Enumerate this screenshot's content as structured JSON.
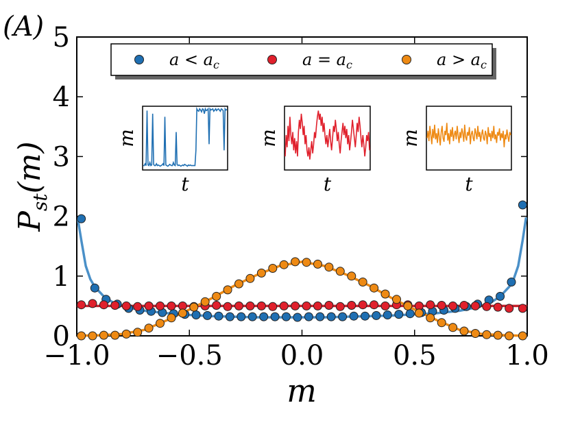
{
  "chart_data": {
    "type": "scatter",
    "panel_label": "(A)",
    "xlabel": "m",
    "ylabel": "P_st(m)",
    "xlim": [
      -1.0,
      1.0
    ],
    "ylim": [
      0,
      5
    ],
    "x_ticks": [
      -1.0,
      -0.5,
      0.0,
      0.5,
      1.0
    ],
    "x_tick_labels": [
      "−1.0",
      "−0.5",
      "0.0",
      "0.5",
      "1.0"
    ],
    "y_ticks": [
      0,
      1,
      2,
      3,
      4,
      5
    ],
    "y_tick_labels": [
      "0",
      "1",
      "2",
      "3",
      "4",
      "5"
    ],
    "legend": {
      "placement": "top-center",
      "entries": [
        {
          "label": "a < a_c",
          "color": "#1f6fb2"
        },
        {
          "label": "a = a_c",
          "color": "#e0202c"
        },
        {
          "label": "a > a_c",
          "color": "#ee8a14"
        }
      ]
    },
    "series": [
      {
        "name": "a < a_c",
        "color": "#1f6fb2",
        "fit_color": "#4a90c8",
        "points": [
          [
            -0.98,
            1.96
          ],
          [
            -0.92,
            0.8
          ],
          [
            -0.87,
            0.61
          ],
          [
            -0.82,
            0.53
          ],
          [
            -0.77,
            0.46
          ],
          [
            -0.72,
            0.43
          ],
          [
            -0.67,
            0.41
          ],
          [
            -0.62,
            0.39
          ],
          [
            -0.57,
            0.37
          ],
          [
            -0.52,
            0.36
          ],
          [
            -0.47,
            0.35
          ],
          [
            -0.42,
            0.34
          ],
          [
            -0.37,
            0.33
          ],
          [
            -0.32,
            0.32
          ],
          [
            -0.27,
            0.32
          ],
          [
            -0.22,
            0.32
          ],
          [
            -0.17,
            0.32
          ],
          [
            -0.12,
            0.32
          ],
          [
            -0.07,
            0.32
          ],
          [
            -0.02,
            0.31
          ],
          [
            0.03,
            0.32
          ],
          [
            0.08,
            0.32
          ],
          [
            0.13,
            0.32
          ],
          [
            0.18,
            0.32
          ],
          [
            0.23,
            0.33
          ],
          [
            0.28,
            0.33
          ],
          [
            0.33,
            0.34
          ],
          [
            0.38,
            0.35
          ],
          [
            0.43,
            0.36
          ],
          [
            0.48,
            0.37
          ],
          [
            0.53,
            0.39
          ],
          [
            0.58,
            0.41
          ],
          [
            0.63,
            0.43
          ],
          [
            0.68,
            0.46
          ],
          [
            0.73,
            0.49
          ],
          [
            0.78,
            0.53
          ],
          [
            0.83,
            0.6
          ],
          [
            0.88,
            0.66
          ],
          [
            0.93,
            0.9
          ],
          [
            0.98,
            2.19
          ]
        ],
        "fit": [
          [
            -0.995,
            1.95
          ],
          [
            -0.98,
            1.6
          ],
          [
            -0.96,
            1.17
          ],
          [
            -0.94,
            0.95
          ],
          [
            -0.92,
            0.82
          ],
          [
            -0.88,
            0.66
          ],
          [
            -0.84,
            0.56
          ],
          [
            -0.78,
            0.48
          ],
          [
            -0.7,
            0.42
          ],
          [
            -0.6,
            0.38
          ],
          [
            -0.5,
            0.35
          ],
          [
            -0.4,
            0.33
          ],
          [
            -0.3,
            0.32
          ],
          [
            -0.2,
            0.31
          ],
          [
            -0.1,
            0.31
          ],
          [
            0.0,
            0.31
          ],
          [
            0.1,
            0.31
          ],
          [
            0.2,
            0.32
          ],
          [
            0.3,
            0.33
          ],
          [
            0.4,
            0.34
          ],
          [
            0.5,
            0.36
          ],
          [
            0.6,
            0.38
          ],
          [
            0.7,
            0.42
          ],
          [
            0.78,
            0.48
          ],
          [
            0.84,
            0.56
          ],
          [
            0.88,
            0.66
          ],
          [
            0.92,
            0.82
          ],
          [
            0.94,
            0.95
          ],
          [
            0.96,
            1.17
          ],
          [
            0.98,
            1.6
          ],
          [
            0.995,
            1.98
          ]
        ]
      },
      {
        "name": "a = a_c",
        "color": "#e0202c",
        "fit_color": "#c8202c",
        "points": [
          [
            -0.98,
            0.52
          ],
          [
            -0.93,
            0.54
          ],
          [
            -0.88,
            0.52
          ],
          [
            -0.83,
            0.51
          ],
          [
            -0.78,
            0.5
          ],
          [
            -0.73,
            0.49
          ],
          [
            -0.68,
            0.5
          ],
          [
            -0.63,
            0.5
          ],
          [
            -0.58,
            0.5
          ],
          [
            -0.53,
            0.5
          ],
          [
            -0.48,
            0.49
          ],
          [
            -0.43,
            0.5
          ],
          [
            -0.38,
            0.51
          ],
          [
            -0.33,
            0.49
          ],
          [
            -0.28,
            0.5
          ],
          [
            -0.23,
            0.5
          ],
          [
            -0.18,
            0.5
          ],
          [
            -0.13,
            0.49
          ],
          [
            -0.08,
            0.5
          ],
          [
            -0.03,
            0.5
          ],
          [
            0.02,
            0.5
          ],
          [
            0.07,
            0.5
          ],
          [
            0.12,
            0.51
          ],
          [
            0.17,
            0.49
          ],
          [
            0.22,
            0.51
          ],
          [
            0.27,
            0.52
          ],
          [
            0.32,
            0.52
          ],
          [
            0.37,
            0.5
          ],
          [
            0.42,
            0.52
          ],
          [
            0.47,
            0.52
          ],
          [
            0.52,
            0.5
          ],
          [
            0.57,
            0.52
          ],
          [
            0.62,
            0.51
          ],
          [
            0.67,
            0.5
          ],
          [
            0.72,
            0.51
          ],
          [
            0.77,
            0.5
          ],
          [
            0.82,
            0.49
          ],
          [
            0.87,
            0.48
          ],
          [
            0.92,
            0.46
          ],
          [
            0.98,
            0.46
          ]
        ],
        "fit": [
          [
            -1.0,
            0.5
          ],
          [
            1.0,
            0.5
          ]
        ]
      },
      {
        "name": "a > a_c",
        "color": "#ee8a14",
        "fit_color": "#ee8a14",
        "points": [
          [
            -0.98,
            0.0
          ],
          [
            -0.93,
            0.0
          ],
          [
            -0.88,
            0.01
          ],
          [
            -0.83,
            0.01
          ],
          [
            -0.78,
            0.03
          ],
          [
            -0.73,
            0.06
          ],
          [
            -0.68,
            0.13
          ],
          [
            -0.63,
            0.21
          ],
          [
            -0.58,
            0.3
          ],
          [
            -0.53,
            0.38
          ],
          [
            -0.48,
            0.48
          ],
          [
            -0.43,
            0.57
          ],
          [
            -0.38,
            0.66
          ],
          [
            -0.33,
            0.77
          ],
          [
            -0.28,
            0.87
          ],
          [
            -0.23,
            0.96
          ],
          [
            -0.18,
            1.05
          ],
          [
            -0.13,
            1.13
          ],
          [
            -0.08,
            1.19
          ],
          [
            -0.03,
            1.24
          ],
          [
            0.02,
            1.23
          ],
          [
            0.07,
            1.2
          ],
          [
            0.12,
            1.15
          ],
          [
            0.17,
            1.08
          ],
          [
            0.22,
            1.0
          ],
          [
            0.27,
            0.9
          ],
          [
            0.32,
            0.8
          ],
          [
            0.37,
            0.7
          ],
          [
            0.42,
            0.61
          ],
          [
            0.47,
            0.5
          ],
          [
            0.52,
            0.38
          ],
          [
            0.57,
            0.3
          ],
          [
            0.62,
            0.22
          ],
          [
            0.67,
            0.14
          ],
          [
            0.72,
            0.08
          ],
          [
            0.77,
            0.04
          ],
          [
            0.82,
            0.02
          ],
          [
            0.87,
            0.01
          ],
          [
            0.92,
            0.0
          ],
          [
            0.98,
            0.0
          ]
        ],
        "fit": [
          [
            -1.0,
            0.0
          ],
          [
            -0.9,
            0.01
          ],
          [
            -0.8,
            0.03
          ],
          [
            -0.7,
            0.1
          ],
          [
            -0.6,
            0.26
          ],
          [
            -0.5,
            0.44
          ],
          [
            -0.4,
            0.63
          ],
          [
            -0.3,
            0.84
          ],
          [
            -0.2,
            1.02
          ],
          [
            -0.1,
            1.17
          ],
          [
            0.0,
            1.24
          ],
          [
            0.1,
            1.17
          ],
          [
            0.2,
            1.02
          ],
          [
            0.3,
            0.84
          ],
          [
            0.4,
            0.63
          ],
          [
            0.5,
            0.44
          ],
          [
            0.6,
            0.26
          ],
          [
            0.7,
            0.1
          ],
          [
            0.8,
            0.03
          ],
          [
            0.9,
            0.01
          ],
          [
            1.0,
            0.0
          ]
        ]
      }
    ],
    "insets": [
      {
        "name": "a < a_c",
        "xlabel": "t",
        "ylabel": "m",
        "color": "#1f6fb2",
        "trace": [
          0.05,
          0.05,
          0.08,
          0.05,
          0.95,
          0.06,
          0.05,
          0.1,
          0.05,
          0.06,
          0.9,
          0.07,
          0.05,
          0.05,
          0.08,
          0.05,
          0.06,
          0.05,
          0.04,
          0.05,
          0.06,
          0.08,
          0.05,
          0.85,
          0.06,
          0.05,
          0.04,
          0.05,
          0.07,
          0.06,
          0.05,
          0.05,
          0.1,
          0.06,
          0.05,
          0.6,
          0.07,
          0.05,
          0.06,
          0.05,
          0.04,
          0.05,
          0.06,
          0.05,
          0.07,
          0.06,
          0.05,
          0.04,
          0.06,
          0.05,
          0.06,
          0.05,
          0.05,
          0.05,
          0.05,
          0.05,
          0.3,
          0.98,
          0.95,
          0.94,
          0.98,
          0.96,
          0.93,
          0.98,
          0.97,
          0.9,
          0.98,
          0.95,
          0.96,
          0.98,
          0.4,
          0.98,
          0.96,
          0.97,
          0.98,
          0.94,
          0.96,
          0.98,
          0.95,
          0.97,
          0.98,
          0.96,
          0.94,
          0.98,
          0.97,
          0.95,
          0.3,
          0.98,
          0.96,
          0.97
        ]
      },
      {
        "name": "a = a_c",
        "xlabel": "t",
        "ylabel": "m",
        "color": "#e0202c",
        "trace": [
          0.2,
          0.55,
          0.35,
          0.7,
          0.45,
          0.85,
          0.55,
          0.4,
          0.6,
          0.3,
          0.5,
          0.25,
          0.45,
          0.2,
          0.6,
          0.8,
          0.65,
          0.9,
          0.75,
          0.55,
          0.7,
          0.4,
          0.55,
          0.3,
          0.2,
          0.35,
          0.15,
          0.3,
          0.45,
          0.25,
          0.4,
          0.6,
          0.5,
          0.7,
          0.85,
          0.95,
          0.8,
          0.9,
          0.7,
          0.85,
          0.6,
          0.75,
          0.55,
          0.4,
          0.55,
          0.35,
          0.5,
          0.65,
          0.45,
          0.3,
          0.5,
          0.7,
          0.6,
          0.8,
          0.65,
          0.45,
          0.6,
          0.4,
          0.25,
          0.45,
          0.6,
          0.75,
          0.55,
          0.7,
          0.5,
          0.65,
          0.4,
          0.55,
          0.3,
          0.45,
          0.6,
          0.8,
          0.65,
          0.5,
          0.35,
          0.55,
          0.75,
          0.6,
          0.85,
          0.7,
          0.5,
          0.35,
          0.55,
          0.4,
          0.2,
          0.35,
          0.55,
          0.45,
          0.6,
          0.3
        ]
      },
      {
        "name": "a > a_c",
        "xlabel": "t",
        "ylabel": "m",
        "color": "#ee8a14",
        "trace": [
          0.5,
          0.62,
          0.45,
          0.7,
          0.55,
          0.4,
          0.65,
          0.5,
          0.72,
          0.48,
          0.58,
          0.42,
          0.66,
          0.52,
          0.38,
          0.6,
          0.7,
          0.5,
          0.44,
          0.62,
          0.55,
          0.75,
          0.46,
          0.58,
          0.4,
          0.64,
          0.52,
          0.68,
          0.45,
          0.56,
          0.62,
          0.48,
          0.7,
          0.55,
          0.42,
          0.6,
          0.5,
          0.66,
          0.58,
          0.44,
          0.72,
          0.52,
          0.46,
          0.6,
          0.54,
          0.68,
          0.4,
          0.56,
          0.62,
          0.5,
          0.45,
          0.66,
          0.58,
          0.48,
          0.7,
          0.52,
          0.6,
          0.44,
          0.56,
          0.64,
          0.5,
          0.46,
          0.62,
          0.55,
          0.4,
          0.68,
          0.52,
          0.58,
          0.45,
          0.62,
          0.5,
          0.7,
          0.48,
          0.56,
          0.42,
          0.6,
          0.54,
          0.66,
          0.46,
          0.58,
          0.5,
          0.62,
          0.35,
          0.56,
          0.48,
          0.64,
          0.52,
          0.44,
          0.6,
          0.55
        ]
      }
    ]
  }
}
